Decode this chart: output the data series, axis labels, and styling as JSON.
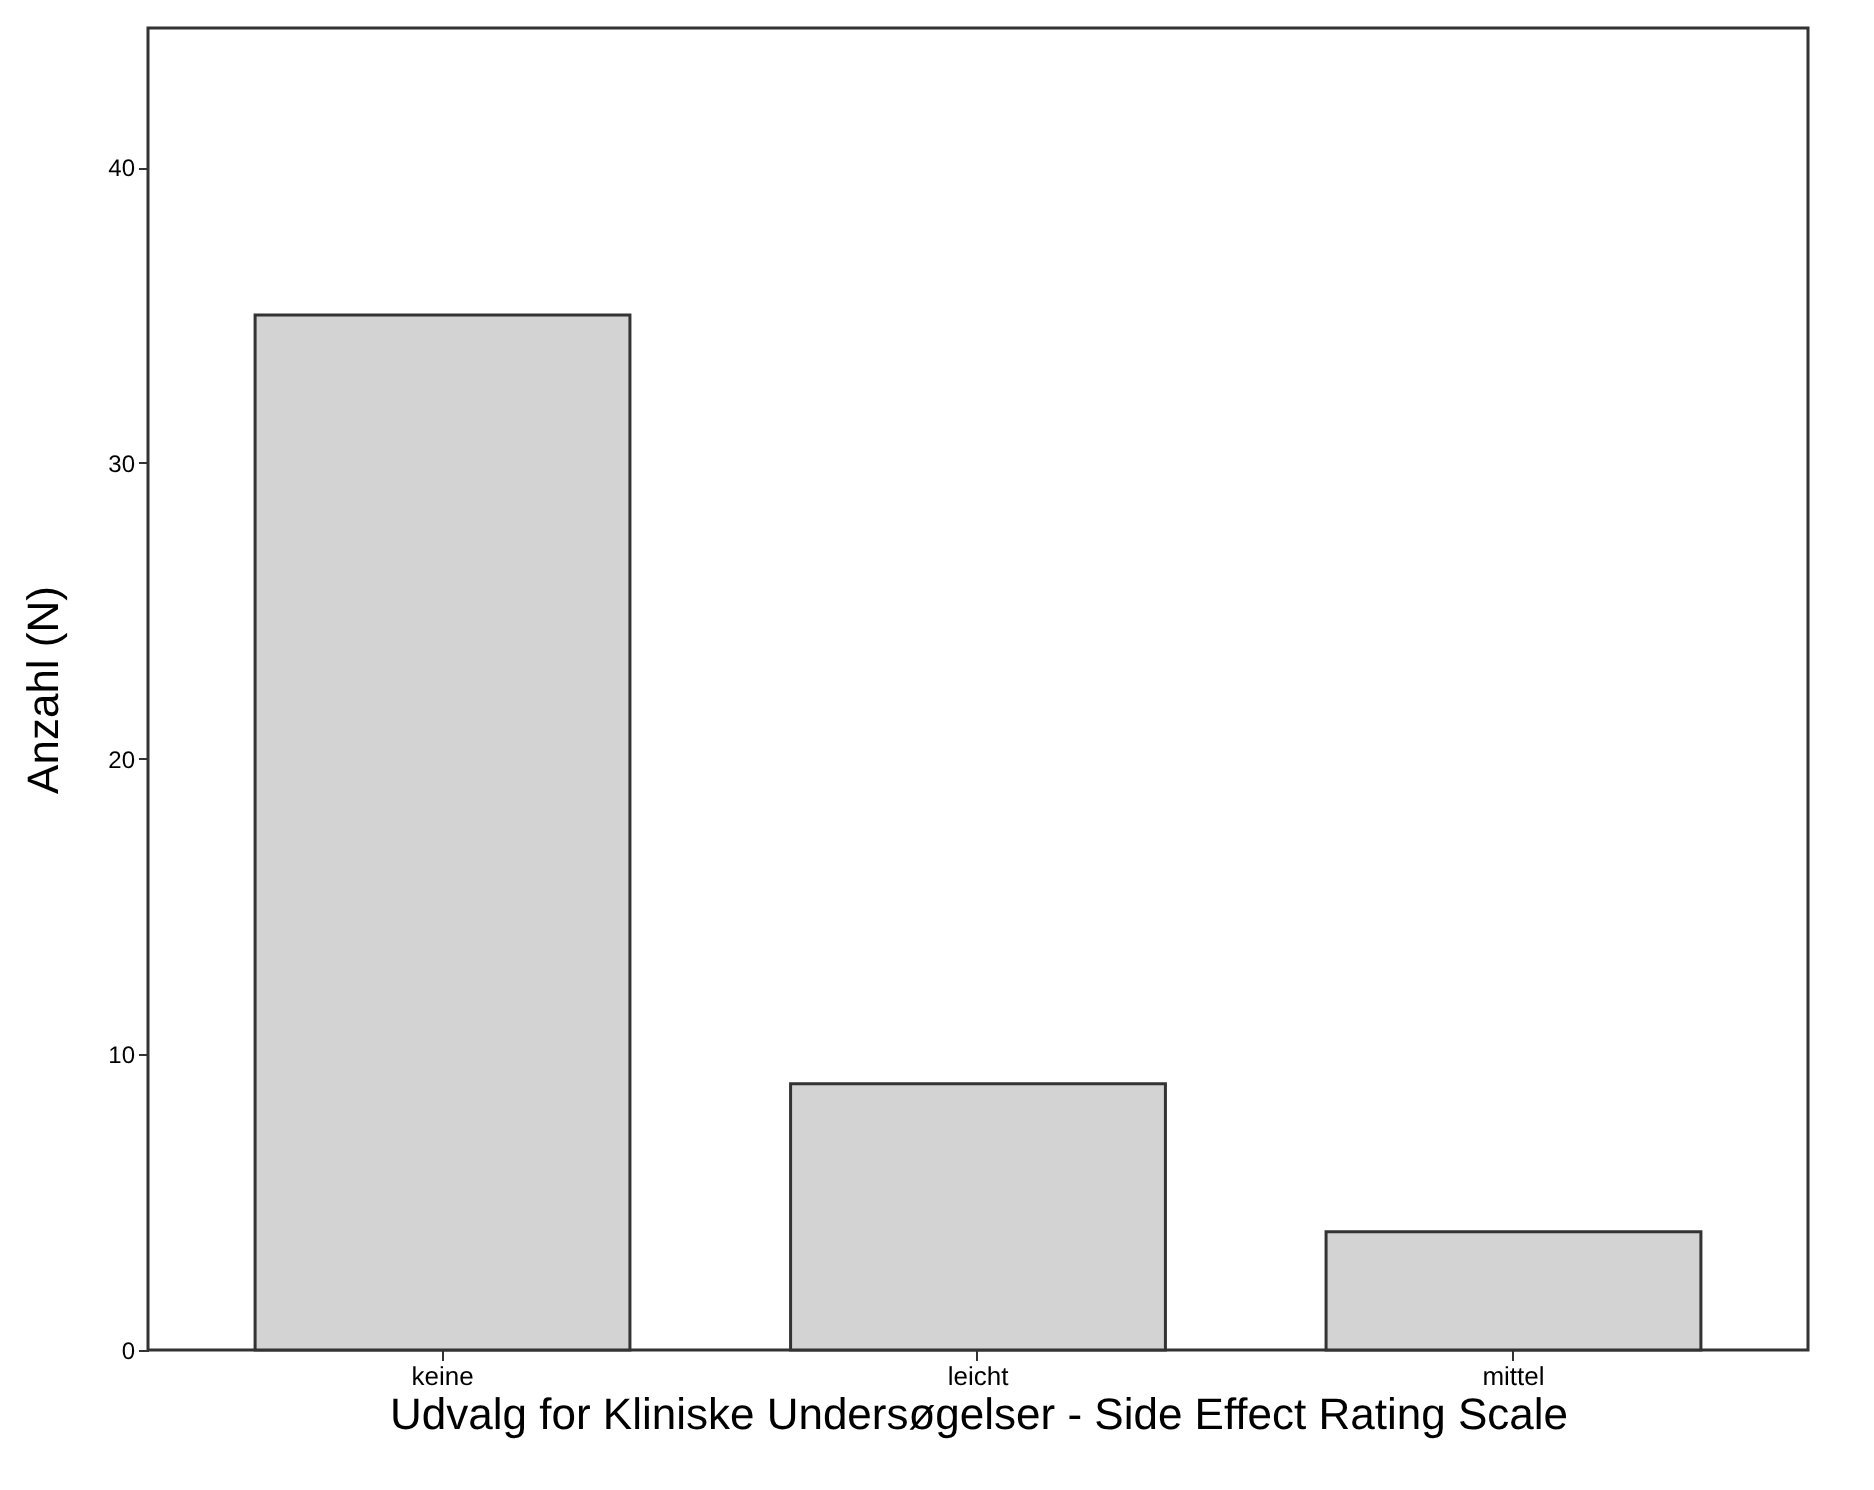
{
  "chart_data": {
    "type": "bar",
    "xlabel": "Udvalg for Kliniske Undersøgelser - Side Effect Rating Scale",
    "ylabel": "Anzahl (N)",
    "categories": [
      "keine",
      "leicht",
      "mittel"
    ],
    "values": [
      35,
      9,
      4
    ],
    "color": "#d3d3d3",
    "ylim": [
      0,
      44.7
    ],
    "yticks": [
      0,
      10,
      20,
      30,
      40
    ],
    "grid": false
  }
}
